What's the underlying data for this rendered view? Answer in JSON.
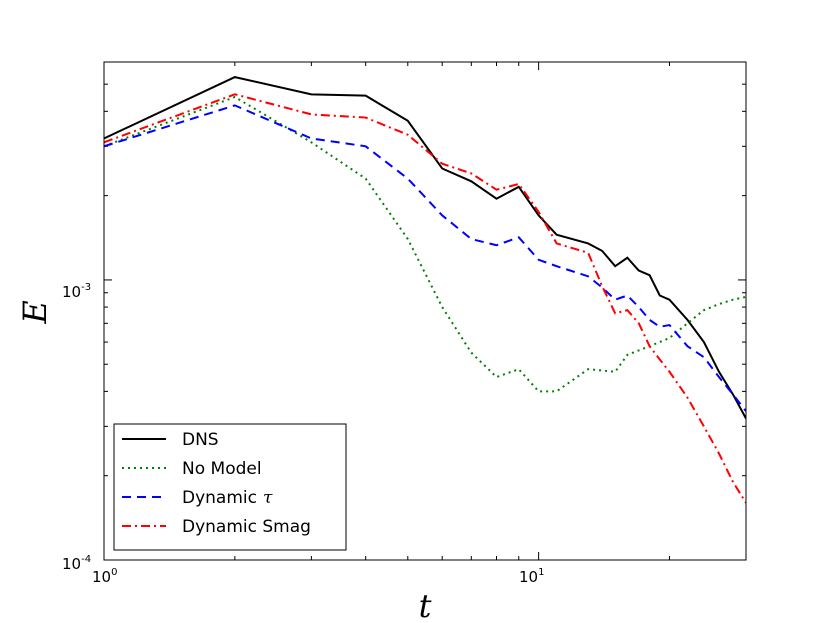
{
  "chart_data": {
    "type": "line",
    "xscale": "log",
    "yscale": "log",
    "xlabel": "t",
    "ylabel": "E",
    "xlim": [
      1,
      30
    ],
    "ylim": [
      0.0001,
      0.006
    ],
    "x_ticks": [
      {
        "value": 1,
        "base": "10",
        "exp": "0"
      },
      {
        "value": 10,
        "base": "10",
        "exp": "1"
      }
    ],
    "y_ticks": [
      {
        "value": 0.0001,
        "base": "10",
        "exp": "-4"
      },
      {
        "value": 0.001,
        "base": "10",
        "exp": "-3"
      }
    ],
    "legend": {
      "position": "lower-left"
    },
    "series": [
      {
        "name": "DNS",
        "label_main": "DNS",
        "label_symbol": "",
        "color": "#000000",
        "dash": "solid",
        "x": [
          1,
          2,
          3,
          4,
          5,
          6,
          7,
          8,
          9,
          10,
          11,
          13,
          14,
          15,
          16,
          17,
          18,
          19,
          20,
          22,
          24,
          26,
          28,
          30
        ],
        "y": [
          0.0032,
          0.0053,
          0.0046,
          0.00455,
          0.0037,
          0.0025,
          0.00225,
          0.00195,
          0.00215,
          0.0017,
          0.00145,
          0.00135,
          0.00127,
          0.00112,
          0.0012,
          0.00108,
          0.00104,
          0.00088,
          0.00085,
          0.00072,
          0.0006,
          0.00047,
          0.00039,
          0.00032
        ]
      },
      {
        "name": "No Model",
        "label_main": "No Model",
        "label_symbol": "",
        "color": "#008000",
        "dash": "dotted",
        "x": [
          1,
          2,
          3,
          4,
          5,
          6,
          7,
          8,
          9,
          10,
          11,
          13,
          15,
          16,
          18,
          20,
          22,
          24,
          26,
          28,
          30
        ],
        "y": [
          0.003,
          0.0045,
          0.0031,
          0.0023,
          0.0014,
          0.0008,
          0.00055,
          0.00045,
          0.00048,
          0.0004,
          0.0004,
          0.00048,
          0.00047,
          0.00054,
          0.00058,
          0.00062,
          0.0007,
          0.00078,
          0.00082,
          0.00085,
          0.00087
        ]
      },
      {
        "name": "Dynamic τ",
        "label_main": "Dynamic",
        "label_symbol": "τ",
        "color": "#0000ff",
        "dash": "dashed",
        "x": [
          1,
          2,
          3,
          4,
          5,
          6,
          7,
          8,
          9,
          10,
          11,
          13,
          14,
          15,
          16,
          17,
          18,
          19,
          20,
          22,
          24,
          26,
          28,
          30
        ],
        "y": [
          0.003,
          0.0042,
          0.0032,
          0.003,
          0.0023,
          0.0017,
          0.0014,
          0.00133,
          0.00142,
          0.00118,
          0.00112,
          0.00103,
          0.00094,
          0.00085,
          0.00088,
          0.0008,
          0.00072,
          0.00068,
          0.00069,
          0.00058,
          0.00053,
          0.00045,
          0.00039,
          0.00034
        ]
      },
      {
        "name": "Dynamic Smag",
        "label_main": "Dynamic Smag",
        "label_symbol": "",
        "color": "#ff0000",
        "dash": "dashdot",
        "x": [
          1,
          2,
          3,
          4,
          5,
          6,
          7,
          8,
          9,
          10,
          11,
          13,
          14,
          15,
          16,
          17,
          18,
          19,
          20,
          22,
          24,
          26,
          28,
          30
        ],
        "y": [
          0.0031,
          0.0046,
          0.0039,
          0.0038,
          0.0033,
          0.0026,
          0.0024,
          0.0021,
          0.0022,
          0.00175,
          0.00135,
          0.00125,
          0.00095,
          0.00076,
          0.00078,
          0.0007,
          0.00058,
          0.00052,
          0.00047,
          0.00038,
          0.0003,
          0.00024,
          0.00019,
          0.00016
        ]
      }
    ]
  }
}
